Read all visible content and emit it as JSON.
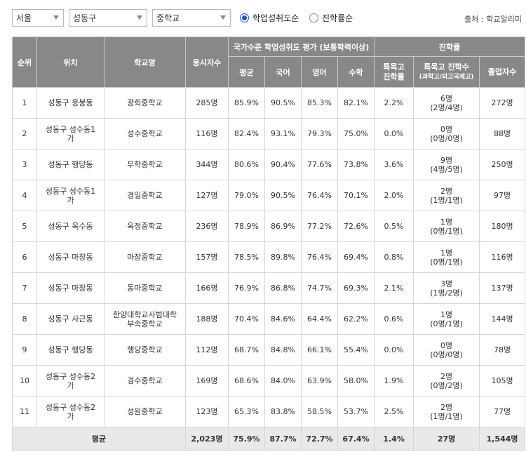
{
  "filters": {
    "region": "서울",
    "district": "성동구",
    "school_type": "중학교"
  },
  "sort": {
    "option1": "학업성취도순",
    "option1_selected": true,
    "option2": "진학률순",
    "option2_selected": false
  },
  "source": {
    "label": "출처 :",
    "value": "학교알리미"
  },
  "headers": {
    "rank": "순위",
    "location": "위치",
    "school": "학교명",
    "examinees": "응시자수",
    "group_achievement": "국가수준 학업성취도 평가 (보통학력이상)",
    "avg": "평균",
    "korean": "국어",
    "english": "영어",
    "math": "수학",
    "group_advancement": "진학률",
    "special_rate": "특목고 진학률",
    "special_count": "특목고 진학수",
    "special_count_sub": "(과학고/외고국제고)",
    "graduates": "졸업자수"
  },
  "rows": [
    {
      "rank": "1",
      "location": "성동구 응봉동",
      "school": "광희중학교",
      "examinees": "285명",
      "avg": "85.9%",
      "korean": "90.5%",
      "english": "85.3%",
      "math": "82.1%",
      "special_rate": "2.2%",
      "special_count": "6명",
      "special_detail": "(2명/4명)",
      "graduates": "272명"
    },
    {
      "rank": "2",
      "location": "성동구 성수동1가",
      "school": "성수중학교",
      "examinees": "116명",
      "avg": "82.4%",
      "korean": "93.1%",
      "english": "79.3%",
      "math": "75.0%",
      "special_rate": "0.0%",
      "special_count": "0명",
      "special_detail": "(0명/0명)",
      "graduates": "88명"
    },
    {
      "rank": "3",
      "location": "성동구 행당동",
      "school": "무학중학교",
      "examinees": "344명",
      "avg": "80.6%",
      "korean": "90.4%",
      "english": "77.6%",
      "math": "73.8%",
      "special_rate": "3.6%",
      "special_count": "9명",
      "special_detail": "(4명/5명)",
      "graduates": "250명"
    },
    {
      "rank": "4",
      "location": "성동구 성수동1가",
      "school": "경일중학교",
      "examinees": "127명",
      "avg": "79.0%",
      "korean": "90.5%",
      "english": "76.4%",
      "math": "70.1%",
      "special_rate": "2.0%",
      "special_count": "2명",
      "special_detail": "(1명/1명)",
      "graduates": "97명"
    },
    {
      "rank": "5",
      "location": "성동구 옥수동",
      "school": "옥정중학교",
      "examinees": "236명",
      "avg": "78.9%",
      "korean": "86.9%",
      "english": "77.2%",
      "math": "72.6%",
      "special_rate": "0.5%",
      "special_count": "1명",
      "special_detail": "(0명/1명)",
      "graduates": "180명"
    },
    {
      "rank": "6",
      "location": "성동구 마장동",
      "school": "마장중학교",
      "examinees": "157명",
      "avg": "78.5%",
      "korean": "89.8%",
      "english": "76.4%",
      "math": "69.4%",
      "special_rate": "0.8%",
      "special_count": "1명",
      "special_detail": "(0명/1명)",
      "graduates": "116명"
    },
    {
      "rank": "7",
      "location": "성동구 마장동",
      "school": "동마중학교",
      "examinees": "166명",
      "avg": "76.9%",
      "korean": "86.8%",
      "english": "74.7%",
      "math": "69.3%",
      "special_rate": "2.1%",
      "special_count": "3명",
      "special_detail": "(1명/2명)",
      "graduates": "137명"
    },
    {
      "rank": "8",
      "location": "성동구 사근동",
      "school": "한양대학교사범대학부속중학교",
      "examinees": "188명",
      "avg": "70.4%",
      "korean": "84.6%",
      "english": "64.4%",
      "math": "62.2%",
      "special_rate": "0.6%",
      "special_count": "1명",
      "special_detail": "(0명/1명)",
      "graduates": "144명"
    },
    {
      "rank": "9",
      "location": "성동구 행당동",
      "school": "행당중학교",
      "examinees": "112명",
      "avg": "68.7%",
      "korean": "84.8%",
      "english": "66.1%",
      "math": "55.4%",
      "special_rate": "0.0%",
      "special_count": "0명",
      "special_detail": "(0명/0명)",
      "graduates": "78명"
    },
    {
      "rank": "10",
      "location": "성동구 성수동2가",
      "school": "경수중학교",
      "examinees": "169명",
      "avg": "68.6%",
      "korean": "84.0%",
      "english": "63.9%",
      "math": "58.0%",
      "special_rate": "1.9%",
      "special_count": "2명",
      "special_detail": "(0명/2명)",
      "graduates": "105명"
    },
    {
      "rank": "11",
      "location": "성동구 성수동2가",
      "school": "성원중학교",
      "examinees": "123명",
      "avg": "65.3%",
      "korean": "83.8%",
      "english": "58.5%",
      "math": "53.7%",
      "special_rate": "2.5%",
      "special_count": "2명",
      "special_detail": "(1명/1명)",
      "graduates": "77명"
    }
  ],
  "footer": {
    "label": "평균",
    "examinees": "2,023명",
    "avg": "75.9%",
    "korean": "87.7%",
    "english": "72.7%",
    "math": "67.4%",
    "special_rate": "1.4%",
    "special_count": "27명",
    "graduates": "1,544명"
  },
  "colors": {
    "header_bg": "#888888",
    "footer_bg": "#e9e9e9",
    "radio_accent": "#1a56c8"
  }
}
